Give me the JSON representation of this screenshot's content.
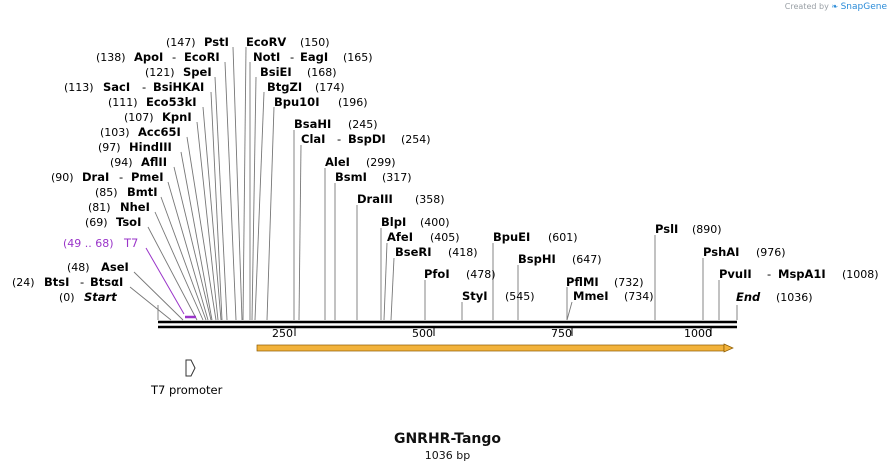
{
  "credit": {
    "prefix": "Created by",
    "brand": "SnapGene"
  },
  "map": {
    "name": "GNRHR-Tango",
    "length_label": "1036 bp",
    "length": 1036,
    "ticks": [
      "250",
      "500",
      "750",
      "1000"
    ],
    "sites": [
      {
        "pos": "(147)",
        "name": "PstI"
      },
      {
        "pos": "(150)",
        "name": "EcoRV"
      },
      {
        "pos": "(138)",
        "name": "ApoI",
        "partner": "EcoRI"
      },
      {
        "pos": "(165)",
        "name": "NotI",
        "partner": "EagI"
      },
      {
        "pos": "(121)",
        "name": "SpeI"
      },
      {
        "pos": "(168)",
        "name": "BsiEI"
      },
      {
        "pos": "(113)",
        "name": "SacI",
        "partner": "BsiHKAI"
      },
      {
        "pos": "(174)",
        "name": "BtgZI"
      },
      {
        "pos": "(111)",
        "name": "Eco53kI"
      },
      {
        "pos": "(196)",
        "name": "Bpu10I"
      },
      {
        "pos": "(107)",
        "name": "KpnI"
      },
      {
        "pos": "(245)",
        "name": "BsaHI"
      },
      {
        "pos": "(103)",
        "name": "Acc65I"
      },
      {
        "pos": "(254)",
        "name": "ClaI",
        "partner": "BspDI"
      },
      {
        "pos": "(97)",
        "name": "HindIII"
      },
      {
        "pos": "(94)",
        "name": "AflII"
      },
      {
        "pos": "(299)",
        "name": "AleI"
      },
      {
        "pos": "(90)",
        "name": "DraI",
        "partner": "PmeI"
      },
      {
        "pos": "(317)",
        "name": "BsmI"
      },
      {
        "pos": "(85)",
        "name": "BmtI"
      },
      {
        "pos": "(358)",
        "name": "DraIII"
      },
      {
        "pos": "(81)",
        "name": "NheI"
      },
      {
        "pos": "(69)",
        "name": "TsoI"
      },
      {
        "pos": "(400)",
        "name": "BlpI"
      },
      {
        "pos": "(405)",
        "name": "AfeI"
      },
      {
        "pos": "(601)",
        "name": "BpuEI"
      },
      {
        "pos": "(890)",
        "name": "PslI"
      },
      {
        "pos": "(418)",
        "name": "BseRI"
      },
      {
        "pos": "(976)",
        "name": "PshAI"
      },
      {
        "pos": "(647)",
        "name": "BspHI"
      },
      {
        "pos": "(48)",
        "name": "AseI"
      },
      {
        "pos": "(478)",
        "name": "PfoI"
      },
      {
        "pos": "(1008)",
        "name": "PvuII",
        "partner": "MspA1I"
      },
      {
        "pos": "(24)",
        "name": "BtsI",
        "partner": "BtsαI"
      },
      {
        "pos": "(732)",
        "name": "PflMI"
      },
      {
        "pos": "(545)",
        "name": "StyI"
      },
      {
        "pos": "(734)",
        "name": "MmeI"
      },
      {
        "pos": "(0)",
        "name": "Start"
      },
      {
        "pos": "(1036)",
        "name": "End"
      }
    ],
    "t7_primer": {
      "range": "(49 .. 68)",
      "name": "T7"
    },
    "features": {
      "promoter_label": "T7 promoter",
      "orf_color": "#f0a830"
    },
    "colors": {
      "primer": "#9a35c9",
      "backbone": "#000000"
    }
  }
}
